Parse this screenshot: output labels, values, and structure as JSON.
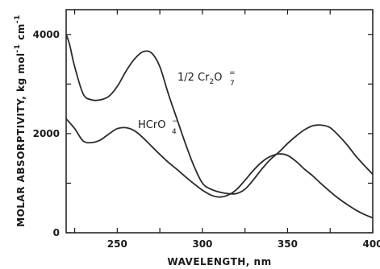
{
  "chart_data": {
    "type": "line",
    "xlabel": "WAVELENGTH, nm",
    "ylabel": "MOLAR ABSORPTIVITY, kg mol",
    "ylabel_exp1": "-1",
    "ylabel_cm": "cm",
    "ylabel_exp2": "-1",
    "xlim": [
      220,
      400
    ],
    "ylim": [
      0,
      4500
    ],
    "x_ticks": [
      250,
      300,
      350,
      400
    ],
    "x_ticks_minor": [
      225,
      275,
      325,
      375
    ],
    "y_ticks": [
      0,
      2000,
      4000
    ],
    "y_ticks_minor": [
      1000,
      3000
    ],
    "grid": false,
    "series": [
      {
        "name": "1/2 Cr2O7=",
        "label_parts": {
          "main": "1/2 Cr",
          "sub1": "2",
          "mid": "O",
          "sup": "=",
          "sub2": "7"
        },
        "x": [
          220,
          222,
          225,
          230,
          235,
          240,
          245,
          250,
          255,
          260,
          265,
          270,
          275,
          280,
          285,
          290,
          295,
          300,
          305,
          310,
          315,
          320,
          325,
          330,
          335,
          340,
          345,
          350,
          355,
          360,
          365,
          370,
          375,
          380,
          385,
          390,
          395,
          400
        ],
        "y": [
          4000,
          3800,
          3350,
          2800,
          2680,
          2680,
          2750,
          2950,
          3250,
          3500,
          3650,
          3630,
          3350,
          2800,
          2300,
          1800,
          1350,
          1000,
          880,
          820,
          790,
          790,
          880,
          1070,
          1290,
          1480,
          1630,
          1800,
          1950,
          2080,
          2160,
          2170,
          2120,
          1960,
          1770,
          1550,
          1360,
          1180
        ]
      },
      {
        "name": "HCrO4-",
        "label_parts": {
          "main": "HCrO",
          "sup": "−",
          "sub": "4"
        },
        "x": [
          220,
          225,
          230,
          235,
          240,
          245,
          250,
          255,
          260,
          265,
          270,
          275,
          280,
          285,
          290,
          295,
          300,
          305,
          310,
          315,
          320,
          325,
          330,
          335,
          340,
          345,
          350,
          355,
          360,
          365,
          370,
          375,
          380,
          385,
          390,
          395,
          400
        ],
        "y": [
          2300,
          2100,
          1850,
          1820,
          1870,
          1990,
          2100,
          2120,
          2060,
          1920,
          1750,
          1580,
          1420,
          1280,
          1130,
          990,
          860,
          760,
          720,
          760,
          870,
          1060,
          1260,
          1430,
          1540,
          1590,
          1560,
          1440,
          1280,
          1140,
          980,
          830,
          690,
          570,
          460,
          370,
          300
        ]
      }
    ]
  }
}
